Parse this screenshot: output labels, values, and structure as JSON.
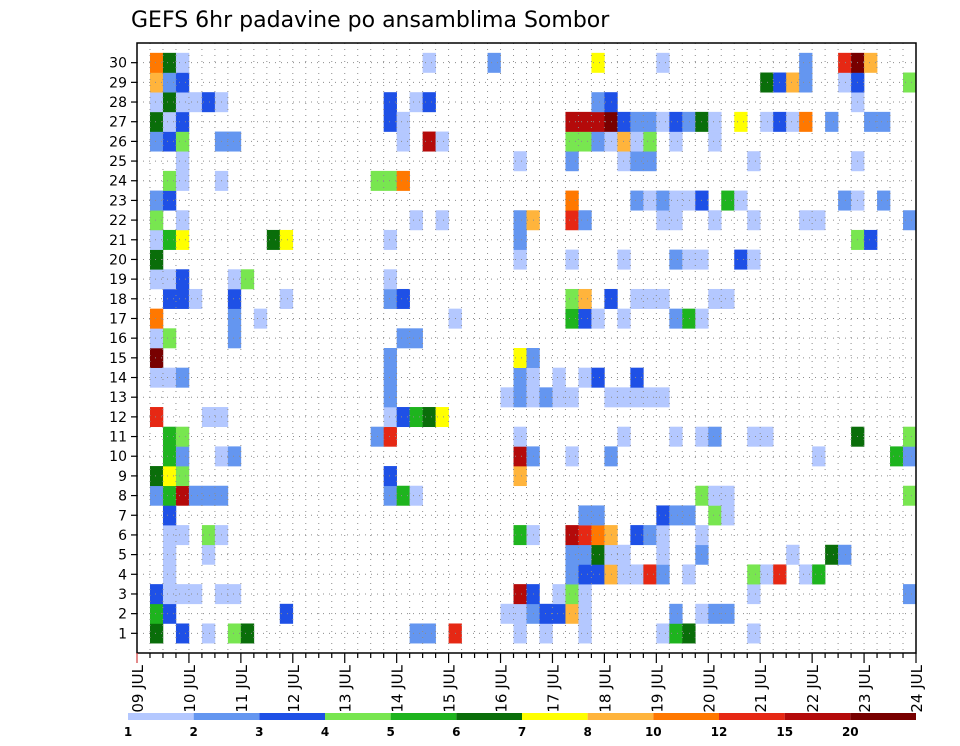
{
  "chart_data": {
    "type": "heatmap",
    "title": "GEFS 6hr padavine po ansamblima Sombor",
    "xlabel": "",
    "ylabel": "",
    "x_ticks": [
      "09 JUL",
      "10 JUL",
      "11 JUL",
      "12 JUL",
      "13 JUL",
      "14 JUL",
      "15 JUL",
      "16 JUL",
      "17 JUL",
      "18 JUL",
      "19 JUL",
      "20 JUL",
      "21 JUL",
      "22 JUL",
      "23 JUL",
      "24 JUL"
    ],
    "y_ticks": [
      "1",
      "2",
      "3",
      "4",
      "5",
      "6",
      "7",
      "8",
      "9",
      "10",
      "11",
      "12",
      "13",
      "14",
      "15",
      "16",
      "17",
      "18",
      "19",
      "20",
      "21",
      "22",
      "23",
      "24",
      "25",
      "26",
      "27",
      "28",
      "29",
      "30"
    ],
    "grid": true,
    "colorbar": {
      "levels": [
        "1",
        "2",
        "3",
        "4",
        "5",
        "6",
        "7",
        "8",
        "10",
        "12",
        "15",
        "20"
      ],
      "colors": [
        "#b4c8ff",
        "#6496f0",
        "#1e50e6",
        "#78e650",
        "#1eb41e",
        "#0a6e0a",
        "#ffff00",
        "#ffb43c",
        "#ff7800",
        "#e62814",
        "#b40a0a",
        "#780000"
      ]
    },
    "cells": [
      [
        1,
        1,
        5
      ],
      [
        1,
        3,
        2
      ],
      [
        1,
        5,
        0
      ],
      [
        1,
        7,
        3
      ],
      [
        1,
        8,
        5
      ],
      [
        1,
        21,
        1
      ],
      [
        1,
        22,
        1
      ],
      [
        1,
        24,
        9
      ],
      [
        1,
        29,
        0
      ],
      [
        1,
        31,
        0
      ],
      [
        1,
        34,
        0
      ],
      [
        1,
        40,
        0
      ],
      [
        1,
        41,
        4
      ],
      [
        1,
        42,
        5
      ],
      [
        1,
        47,
        0
      ],
      [
        2,
        1,
        4
      ],
      [
        2,
        2,
        2
      ],
      [
        2,
        11,
        2
      ],
      [
        2,
        28,
        0
      ],
      [
        2,
        29,
        0
      ],
      [
        2,
        30,
        1
      ],
      [
        2,
        31,
        2
      ],
      [
        2,
        32,
        2
      ],
      [
        2,
        33,
        7
      ],
      [
        2,
        34,
        0
      ],
      [
        2,
        41,
        1
      ],
      [
        2,
        43,
        0
      ],
      [
        2,
        44,
        1
      ],
      [
        2,
        45,
        1
      ],
      [
        3,
        1,
        2
      ],
      [
        3,
        2,
        0
      ],
      [
        3,
        3,
        0
      ],
      [
        3,
        4,
        0
      ],
      [
        3,
        6,
        0
      ],
      [
        3,
        7,
        0
      ],
      [
        3,
        29,
        10
      ],
      [
        3,
        30,
        2
      ],
      [
        3,
        32,
        0
      ],
      [
        3,
        33,
        3
      ],
      [
        3,
        34,
        0
      ],
      [
        3,
        47,
        0
      ],
      [
        3,
        59,
        1
      ],
      [
        4,
        2,
        0
      ],
      [
        4,
        33,
        1
      ],
      [
        4,
        34,
        2
      ],
      [
        4,
        35,
        2
      ],
      [
        4,
        36,
        7
      ],
      [
        4,
        37,
        0
      ],
      [
        4,
        38,
        0
      ],
      [
        4,
        39,
        9
      ],
      [
        4,
        40,
        1
      ],
      [
        4,
        42,
        0
      ],
      [
        4,
        47,
        3
      ],
      [
        4,
        48,
        0
      ],
      [
        4,
        49,
        9
      ],
      [
        4,
        51,
        0
      ],
      [
        4,
        52,
        4
      ],
      [
        5,
        2,
        0
      ],
      [
        5,
        5,
        0
      ],
      [
        5,
        33,
        1
      ],
      [
        5,
        34,
        1
      ],
      [
        5,
        35,
        5
      ],
      [
        5,
        36,
        0
      ],
      [
        5,
        37,
        0
      ],
      [
        5,
        40,
        0
      ],
      [
        5,
        43,
        1
      ],
      [
        5,
        50,
        0
      ],
      [
        5,
        53,
        5
      ],
      [
        5,
        54,
        1
      ],
      [
        6,
        2,
        0
      ],
      [
        6,
        3,
        0
      ],
      [
        6,
        5,
        3
      ],
      [
        6,
        6,
        0
      ],
      [
        6,
        29,
        4
      ],
      [
        6,
        30,
        0
      ],
      [
        6,
        33,
        10
      ],
      [
        6,
        34,
        9
      ],
      [
        6,
        35,
        8
      ],
      [
        6,
        36,
        7
      ],
      [
        6,
        38,
        2
      ],
      [
        6,
        39,
        1
      ],
      [
        6,
        40,
        0
      ],
      [
        6,
        43,
        0
      ],
      [
        7,
        2,
        2
      ],
      [
        7,
        34,
        1
      ],
      [
        7,
        35,
        1
      ],
      [
        7,
        40,
        2
      ],
      [
        7,
        41,
        1
      ],
      [
        7,
        42,
        1
      ],
      [
        7,
        44,
        3
      ],
      [
        7,
        45,
        0
      ],
      [
        8,
        1,
        1
      ],
      [
        8,
        2,
        4
      ],
      [
        8,
        3,
        10
      ],
      [
        8,
        4,
        1
      ],
      [
        8,
        5,
        1
      ],
      [
        8,
        6,
        1
      ],
      [
        8,
        19,
        1
      ],
      [
        8,
        20,
        4
      ],
      [
        8,
        21,
        0
      ],
      [
        8,
        43,
        3
      ],
      [
        8,
        44,
        0
      ],
      [
        8,
        45,
        0
      ],
      [
        8,
        59,
        3
      ],
      [
        9,
        1,
        5
      ],
      [
        9,
        2,
        6
      ],
      [
        9,
        3,
        3
      ],
      [
        9,
        19,
        2
      ],
      [
        9,
        29,
        7
      ],
      [
        10,
        2,
        4
      ],
      [
        10,
        3,
        1
      ],
      [
        10,
        6,
        0
      ],
      [
        10,
        7,
        1
      ],
      [
        10,
        29,
        10
      ],
      [
        10,
        30,
        1
      ],
      [
        10,
        33,
        0
      ],
      [
        10,
        36,
        1
      ],
      [
        10,
        52,
        0
      ],
      [
        10,
        58,
        4
      ],
      [
        10,
        59,
        1
      ],
      [
        11,
        2,
        4
      ],
      [
        11,
        3,
        3
      ],
      [
        11,
        18,
        1
      ],
      [
        11,
        19,
        9
      ],
      [
        11,
        29,
        0
      ],
      [
        11,
        37,
        0
      ],
      [
        11,
        41,
        0
      ],
      [
        11,
        43,
        0
      ],
      [
        11,
        44,
        1
      ],
      [
        11,
        47,
        0
      ],
      [
        11,
        48,
        0
      ],
      [
        11,
        55,
        5
      ],
      [
        11,
        59,
        3
      ],
      [
        12,
        1,
        9
      ],
      [
        12,
        5,
        0
      ],
      [
        12,
        6,
        0
      ],
      [
        12,
        19,
        0
      ],
      [
        12,
        20,
        2
      ],
      [
        12,
        21,
        4
      ],
      [
        12,
        22,
        5
      ],
      [
        12,
        23,
        6
      ],
      [
        13,
        19,
        1
      ],
      [
        13,
        28,
        0
      ],
      [
        13,
        29,
        1
      ],
      [
        13,
        30,
        0
      ],
      [
        13,
        31,
        1
      ],
      [
        13,
        32,
        0
      ],
      [
        13,
        33,
        0
      ],
      [
        13,
        36,
        0
      ],
      [
        13,
        37,
        0
      ],
      [
        13,
        38,
        0
      ],
      [
        13,
        39,
        0
      ],
      [
        13,
        40,
        0
      ],
      [
        14,
        1,
        0
      ],
      [
        14,
        2,
        0
      ],
      [
        14,
        3,
        1
      ],
      [
        14,
        19,
        1
      ],
      [
        14,
        29,
        1
      ],
      [
        14,
        30,
        0
      ],
      [
        14,
        32,
        0
      ],
      [
        14,
        34,
        0
      ],
      [
        14,
        35,
        2
      ],
      [
        14,
        38,
        2
      ],
      [
        15,
        1,
        11
      ],
      [
        15,
        19,
        1
      ],
      [
        15,
        29,
        6
      ],
      [
        15,
        30,
        1
      ],
      [
        16,
        1,
        0
      ],
      [
        16,
        2,
        3
      ],
      [
        16,
        7,
        1
      ],
      [
        16,
        20,
        1
      ],
      [
        16,
        21,
        1
      ],
      [
        17,
        1,
        8
      ],
      [
        17,
        7,
        1
      ],
      [
        17,
        9,
        0
      ],
      [
        17,
        24,
        0
      ],
      [
        17,
        33,
        4
      ],
      [
        17,
        34,
        2
      ],
      [
        17,
        35,
        0
      ],
      [
        17,
        37,
        0
      ],
      [
        17,
        41,
        1
      ],
      [
        17,
        42,
        4
      ],
      [
        17,
        43,
        0
      ],
      [
        18,
        2,
        2
      ],
      [
        18,
        3,
        2
      ],
      [
        18,
        4,
        0
      ],
      [
        18,
        7,
        2
      ],
      [
        18,
        11,
        0
      ],
      [
        18,
        19,
        1
      ],
      [
        18,
        20,
        2
      ],
      [
        18,
        33,
        3
      ],
      [
        18,
        34,
        7
      ],
      [
        18,
        36,
        2
      ],
      [
        18,
        38,
        0
      ],
      [
        18,
        39,
        0
      ],
      [
        18,
        40,
        0
      ],
      [
        18,
        44,
        0
      ],
      [
        18,
        45,
        0
      ],
      [
        19,
        1,
        0
      ],
      [
        19,
        2,
        0
      ],
      [
        19,
        3,
        2
      ],
      [
        19,
        7,
        0
      ],
      [
        19,
        8,
        3
      ],
      [
        19,
        19,
        0
      ],
      [
        20,
        1,
        5
      ],
      [
        20,
        29,
        0
      ],
      [
        20,
        33,
        0
      ],
      [
        20,
        37,
        0
      ],
      [
        20,
        41,
        1
      ],
      [
        20,
        42,
        0
      ],
      [
        20,
        43,
        0
      ],
      [
        20,
        46,
        2
      ],
      [
        20,
        47,
        0
      ],
      [
        21,
        1,
        0
      ],
      [
        21,
        2,
        4
      ],
      [
        21,
        3,
        6
      ],
      [
        21,
        10,
        5
      ],
      [
        21,
        11,
        6
      ],
      [
        21,
        19,
        0
      ],
      [
        21,
        29,
        1
      ],
      [
        21,
        55,
        3
      ],
      [
        21,
        56,
        2
      ],
      [
        22,
        1,
        3
      ],
      [
        22,
        3,
        0
      ],
      [
        22,
        21,
        0
      ],
      [
        22,
        23,
        0
      ],
      [
        22,
        29,
        1
      ],
      [
        22,
        30,
        7
      ],
      [
        22,
        33,
        9
      ],
      [
        22,
        34,
        1
      ],
      [
        22,
        40,
        0
      ],
      [
        22,
        41,
        0
      ],
      [
        22,
        44,
        0
      ],
      [
        22,
        47,
        0
      ],
      [
        22,
        51,
        0
      ],
      [
        22,
        52,
        0
      ],
      [
        22,
        59,
        1
      ],
      [
        23,
        1,
        1
      ],
      [
        23,
        2,
        2
      ],
      [
        23,
        33,
        8
      ],
      [
        23,
        38,
        1
      ],
      [
        23,
        39,
        0
      ],
      [
        23,
        40,
        1
      ],
      [
        23,
        41,
        0
      ],
      [
        23,
        42,
        0
      ],
      [
        23,
        43,
        2
      ],
      [
        23,
        45,
        4
      ],
      [
        23,
        46,
        0
      ],
      [
        23,
        54,
        1
      ],
      [
        23,
        55,
        0
      ],
      [
        23,
        57,
        1
      ],
      [
        24,
        2,
        3
      ],
      [
        24,
        3,
        0
      ],
      [
        24,
        6,
        0
      ],
      [
        24,
        18,
        3
      ],
      [
        24,
        19,
        3
      ],
      [
        24,
        20,
        8
      ],
      [
        25,
        3,
        0
      ],
      [
        25,
        29,
        0
      ],
      [
        25,
        33,
        1
      ],
      [
        25,
        37,
        0
      ],
      [
        25,
        38,
        1
      ],
      [
        25,
        39,
        1
      ],
      [
        25,
        47,
        0
      ],
      [
        25,
        55,
        0
      ],
      [
        26,
        1,
        1
      ],
      [
        26,
        2,
        2
      ],
      [
        26,
        3,
        3
      ],
      [
        26,
        6,
        1
      ],
      [
        26,
        7,
        1
      ],
      [
        26,
        20,
        0
      ],
      [
        26,
        22,
        10
      ],
      [
        26,
        23,
        0
      ],
      [
        26,
        33,
        3
      ],
      [
        26,
        34,
        3
      ],
      [
        26,
        35,
        1
      ],
      [
        26,
        36,
        0
      ],
      [
        26,
        37,
        7
      ],
      [
        26,
        38,
        0
      ],
      [
        26,
        39,
        3
      ],
      [
        26,
        41,
        0
      ],
      [
        26,
        44,
        0
      ],
      [
        27,
        1,
        5
      ],
      [
        27,
        2,
        0
      ],
      [
        27,
        3,
        2
      ],
      [
        27,
        19,
        2
      ],
      [
        27,
        20,
        0
      ],
      [
        27,
        33,
        10
      ],
      [
        27,
        34,
        10
      ],
      [
        27,
        35,
        10
      ],
      [
        27,
        36,
        11
      ],
      [
        27,
        37,
        2
      ],
      [
        27,
        38,
        1
      ],
      [
        27,
        39,
        1
      ],
      [
        27,
        40,
        0
      ],
      [
        27,
        41,
        2
      ],
      [
        27,
        42,
        1
      ],
      [
        27,
        43,
        5
      ],
      [
        27,
        44,
        0
      ],
      [
        27,
        46,
        6
      ],
      [
        27,
        48,
        0
      ],
      [
        27,
        49,
        2
      ],
      [
        27,
        50,
        0
      ],
      [
        27,
        51,
        8
      ],
      [
        27,
        53,
        1
      ],
      [
        27,
        56,
        1
      ],
      [
        27,
        57,
        1
      ],
      [
        28,
        1,
        0
      ],
      [
        28,
        2,
        5
      ],
      [
        28,
        3,
        0
      ],
      [
        28,
        4,
        0
      ],
      [
        28,
        5,
        2
      ],
      [
        28,
        6,
        0
      ],
      [
        28,
        19,
        2
      ],
      [
        28,
        21,
        0
      ],
      [
        28,
        22,
        2
      ],
      [
        28,
        35,
        1
      ],
      [
        28,
        36,
        2
      ],
      [
        28,
        55,
        0
      ],
      [
        29,
        1,
        7
      ],
      [
        29,
        2,
        1
      ],
      [
        29,
        3,
        2
      ],
      [
        29,
        48,
        5
      ],
      [
        29,
        49,
        2
      ],
      [
        29,
        50,
        7
      ],
      [
        29,
        51,
        1
      ],
      [
        29,
        54,
        0
      ],
      [
        29,
        55,
        2
      ],
      [
        29,
        59,
        3
      ],
      [
        30,
        1,
        8
      ],
      [
        30,
        2,
        5
      ],
      [
        30,
        3,
        0
      ],
      [
        30,
        22,
        0
      ],
      [
        30,
        27,
        1
      ],
      [
        30,
        35,
        6
      ],
      [
        30,
        40,
        0
      ],
      [
        30,
        51,
        1
      ],
      [
        30,
        54,
        9
      ],
      [
        30,
        55,
        11
      ],
      [
        30,
        56,
        7
      ]
    ]
  }
}
